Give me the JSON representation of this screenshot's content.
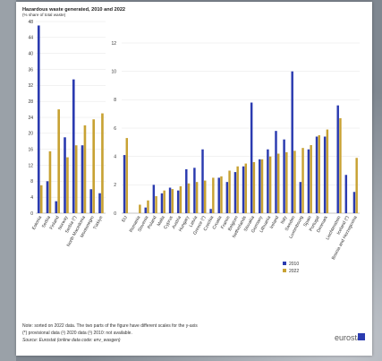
{
  "chart_data": {
    "type": "bar",
    "title": "Hazardous waste generated, 2010 and 2022",
    "subtitle": "(% share of total waste)",
    "panels": [
      {
        "categories": [
          "Estonia",
          "Serbia",
          "Finland",
          "Norway",
          "Serbia (*)",
          "North Macedonia",
          "Montenegro",
          "Türkiye"
        ],
        "ylim": [
          0,
          48
        ],
        "yticks": [
          0,
          4,
          8,
          12,
          16,
          20,
          24,
          28,
          32,
          36,
          40,
          44,
          48
        ],
        "series": [
          {
            "name": "2010",
            "values": [
              47,
              8,
              3,
              19,
              33.5,
              17,
              6,
              5
            ]
          },
          {
            "name": "2022",
            "values": [
              7,
              15.5,
              26,
              14,
              17,
              22,
              23.5,
              25
            ]
          }
        ]
      },
      {
        "categories": [
          "EU",
          "Romania",
          "Slovenia",
          "Poland",
          "Malta",
          "Cyprus",
          "Austria",
          "Hungary",
          "Latvia",
          "Greece (*)",
          "Czechia",
          "Croatia",
          "France",
          "Belgium",
          "Netherlands",
          "Slovakia",
          "Germany",
          "Lithuania",
          "Ireland",
          "Italy",
          "Sweden",
          "Luxembourg",
          "Spain",
          "Portugal",
          "Denmark",
          "Liechtenstein",
          "Iceland (*)",
          "Bosnia and Herzegovina"
        ],
        "ylim": [
          0,
          12
        ],
        "yticks": [
          0,
          2,
          4,
          6,
          8,
          10,
          12
        ],
        "series": [
          {
            "name": "2010",
            "values": [
              4.1,
              0,
              0.4,
              2.0,
              1.4,
              1.8,
              1.6,
              3.1,
              3.2,
              4.5,
              0.3,
              2.5,
              2.2,
              2.9,
              3.3,
              7.8,
              3.8,
              4.5,
              5.8,
              5.2,
              10.0,
              2.2,
              4.5,
              5.4,
              5.4,
              7.6,
              2.7,
              1.5
            ],
            "missing": [
              1
            ]
          },
          {
            "name": "2022",
            "values": [
              5.3,
              0.6,
              0.9,
              1.2,
              1.6,
              1.7,
              1.9,
              2.1,
              2.2,
              2.3,
              2.5,
              2.6,
              3.0,
              3.3,
              3.5,
              3.6,
              3.8,
              4.0,
              4.2,
              4.3,
              4.4,
              4.6,
              4.8,
              5.5,
              5.9,
              6.7,
              0,
              3.9
            ],
            "missing": [
              26
            ]
          }
        ]
      }
    ],
    "legend": {
      "placement": "bottom-right",
      "entries": [
        "2010",
        "2022"
      ]
    },
    "colors": {
      "2010": "#2b3bb0",
      "2022": "#c8a233"
    }
  },
  "footnotes": {
    "note": "Note: sorted on 2022 data. The two parts of the figure have different scales for the y-axis",
    "flags": "(*) provisional data  (²) 2020 data  (³) 2010: not available.",
    "source": "Source: Eurostat (online data code: env_wasgen)"
  },
  "logo": {
    "text": "eurostat"
  }
}
